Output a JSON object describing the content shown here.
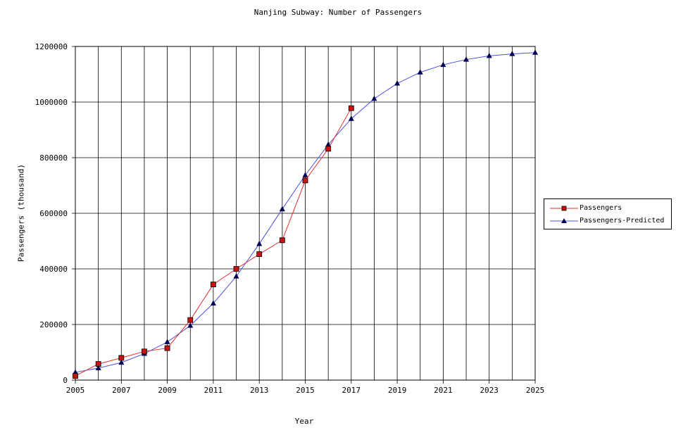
{
  "chart_data": {
    "type": "line",
    "title": "Nanjing Subway: Number of Passengers",
    "xlabel": "Year",
    "ylabel": "Passengers (thousand)",
    "xlim": [
      2005,
      2025
    ],
    "ylim": [
      0,
      1200000
    ],
    "x_ticks": [
      2005,
      2007,
      2009,
      2011,
      2013,
      2015,
      2017,
      2019,
      2021,
      2023,
      2025
    ],
    "y_ticks": [
      0,
      200000,
      400000,
      600000,
      800000,
      1000000,
      1200000
    ],
    "grid": true,
    "legend_position": "right",
    "series": [
      {
        "name": "Passengers",
        "color": "#e03030",
        "marker_fill": "#cc1111",
        "marker": "square",
        "x": [
          2005,
          2006,
          2007,
          2008,
          2009,
          2010,
          2011,
          2012,
          2013,
          2014,
          2015,
          2016,
          2017
        ],
        "y": [
          15000,
          58000,
          80000,
          103000,
          115000,
          216000,
          344000,
          400000,
          453000,
          503000,
          718000,
          832000,
          978000
        ]
      },
      {
        "name": "Passengers-Predicted",
        "color": "#5050dd",
        "marker_fill": "#000050",
        "marker": "triangle",
        "x": [
          2005,
          2006,
          2007,
          2008,
          2009,
          2010,
          2011,
          2012,
          2013,
          2014,
          2015,
          2016,
          2017,
          2018,
          2019,
          2020,
          2021,
          2022,
          2023,
          2024,
          2025
        ],
        "y": [
          28000,
          43000,
          63000,
          95000,
          137000,
          196000,
          276000,
          373000,
          490000,
          615000,
          737000,
          847000,
          940000,
          1012000,
          1067000,
          1107000,
          1134000,
          1153000,
          1166000,
          1173000,
          1178000
        ]
      }
    ]
  }
}
